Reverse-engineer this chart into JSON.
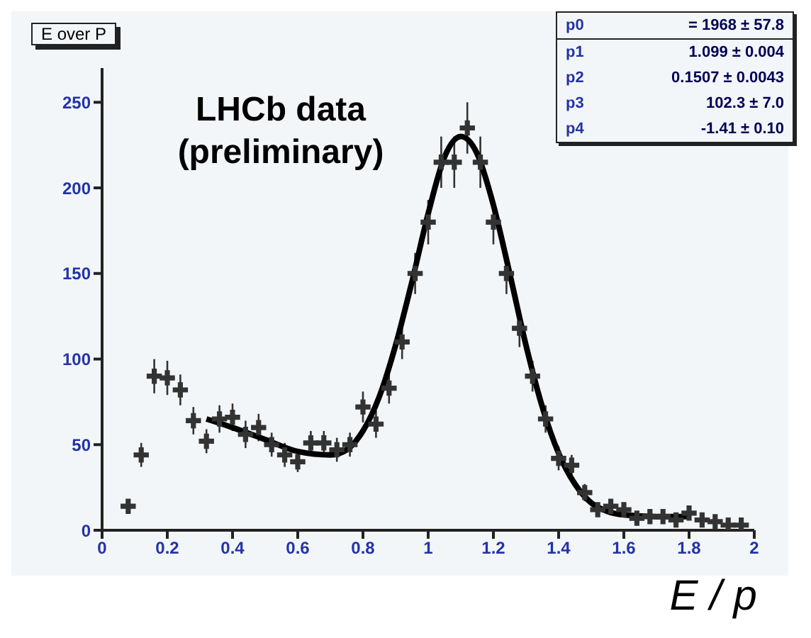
{
  "chart_data": {
    "type": "scatter",
    "title": "E over P",
    "xlabel": "E / p",
    "xlim": [
      0,
      2
    ],
    "ylim": [
      0,
      270
    ],
    "xticks": [
      0,
      0.2,
      0.4,
      0.6,
      0.8,
      1,
      1.2,
      1.4,
      1.6,
      1.8,
      2
    ],
    "yticks": [
      0,
      50,
      100,
      150,
      200,
      250
    ],
    "grid": false,
    "legend": false,
    "marker": "cross",
    "annotations": [
      "LHCb data (preliminary)",
      "p0 = 1968 ± 57.8",
      "p1 1.099 ± 0.004",
      "p2 0.1507 ± 0.0043",
      "p3 102.3 ± 7.0",
      "p4 -1.41 ± 0.10"
    ],
    "series": [
      {
        "color": "#333333",
        "x": [
          0.08,
          0.12,
          0.16,
          0.2,
          0.24,
          0.28,
          0.32,
          0.36,
          0.4,
          0.44,
          0.48,
          0.52,
          0.56,
          0.6,
          0.64,
          0.68,
          0.72,
          0.76,
          0.8,
          0.84,
          0.88,
          0.92,
          0.96,
          1,
          1.04,
          1.08,
          1.12,
          1.16,
          1.2,
          1.24,
          1.28,
          1.32,
          1.36,
          1.4,
          1.44,
          1.48,
          1.52,
          1.56,
          1.6,
          1.64,
          1.68,
          1.72,
          1.76,
          1.8,
          1.84,
          1.88,
          1.92,
          1.96
        ],
        "values": [
          14,
          44,
          90,
          89,
          82,
          64,
          52,
          65,
          66,
          56,
          60,
          50,
          44,
          40,
          51,
          51,
          47,
          50,
          72,
          62,
          83,
          110,
          150,
          180,
          215,
          215,
          235,
          215,
          180,
          150,
          118,
          90,
          65,
          42,
          38,
          22,
          12,
          14,
          12,
          7,
          8,
          8,
          6,
          10,
          6,
          5,
          3,
          3
        ],
        "errors": [
          4,
          7,
          10,
          10,
          9,
          8,
          7,
          8,
          8,
          8,
          8,
          7,
          7,
          6,
          7,
          7,
          7,
          7,
          9,
          8,
          9,
          10,
          12,
          13,
          15,
          15,
          15,
          15,
          13,
          12,
          11,
          9,
          8,
          7,
          6,
          5,
          4,
          4,
          4,
          3,
          3,
          3,
          3,
          3,
          3,
          2,
          2,
          2
        ],
        "xerrors": [
          0.02,
          0.02,
          0.02,
          0.02,
          0.02,
          0.02,
          0.02,
          0.02,
          0.02,
          0.02,
          0.02,
          0.02,
          0.02,
          0.02,
          0.02,
          0.02,
          0.02,
          0.02,
          0.02,
          0.02,
          0.02,
          0.02,
          0.02,
          0.02,
          0.02,
          0.02,
          0.02,
          0.02,
          0.02,
          0.02,
          0.02,
          0.02,
          0.02,
          0.02,
          0.02,
          0.02,
          0.02,
          0.02,
          0.02,
          0.02,
          0.02,
          0.02,
          0.02,
          0.02,
          0.02,
          0.02,
          0.02,
          0.02
        ]
      },
      {
        "type": "line",
        "color": "#000000",
        "marker": "none",
        "x": [
          0.32,
          0.4,
          0.5,
          0.6,
          0.7,
          0.75,
          0.8,
          0.85,
          0.9,
          0.95,
          1,
          1.05,
          1.1,
          1.15,
          1.2,
          1.25,
          1.3,
          1.35,
          1.4,
          1.45,
          1.5,
          1.55,
          1.6,
          1.7,
          1.8
        ],
        "values": [
          65,
          60,
          53,
          46,
          44,
          47,
          58,
          78,
          108,
          145,
          185,
          218,
          230,
          220,
          190,
          150,
          108,
          72,
          45,
          27,
          16,
          11,
          9,
          8,
          8
        ]
      }
    ]
  }
}
